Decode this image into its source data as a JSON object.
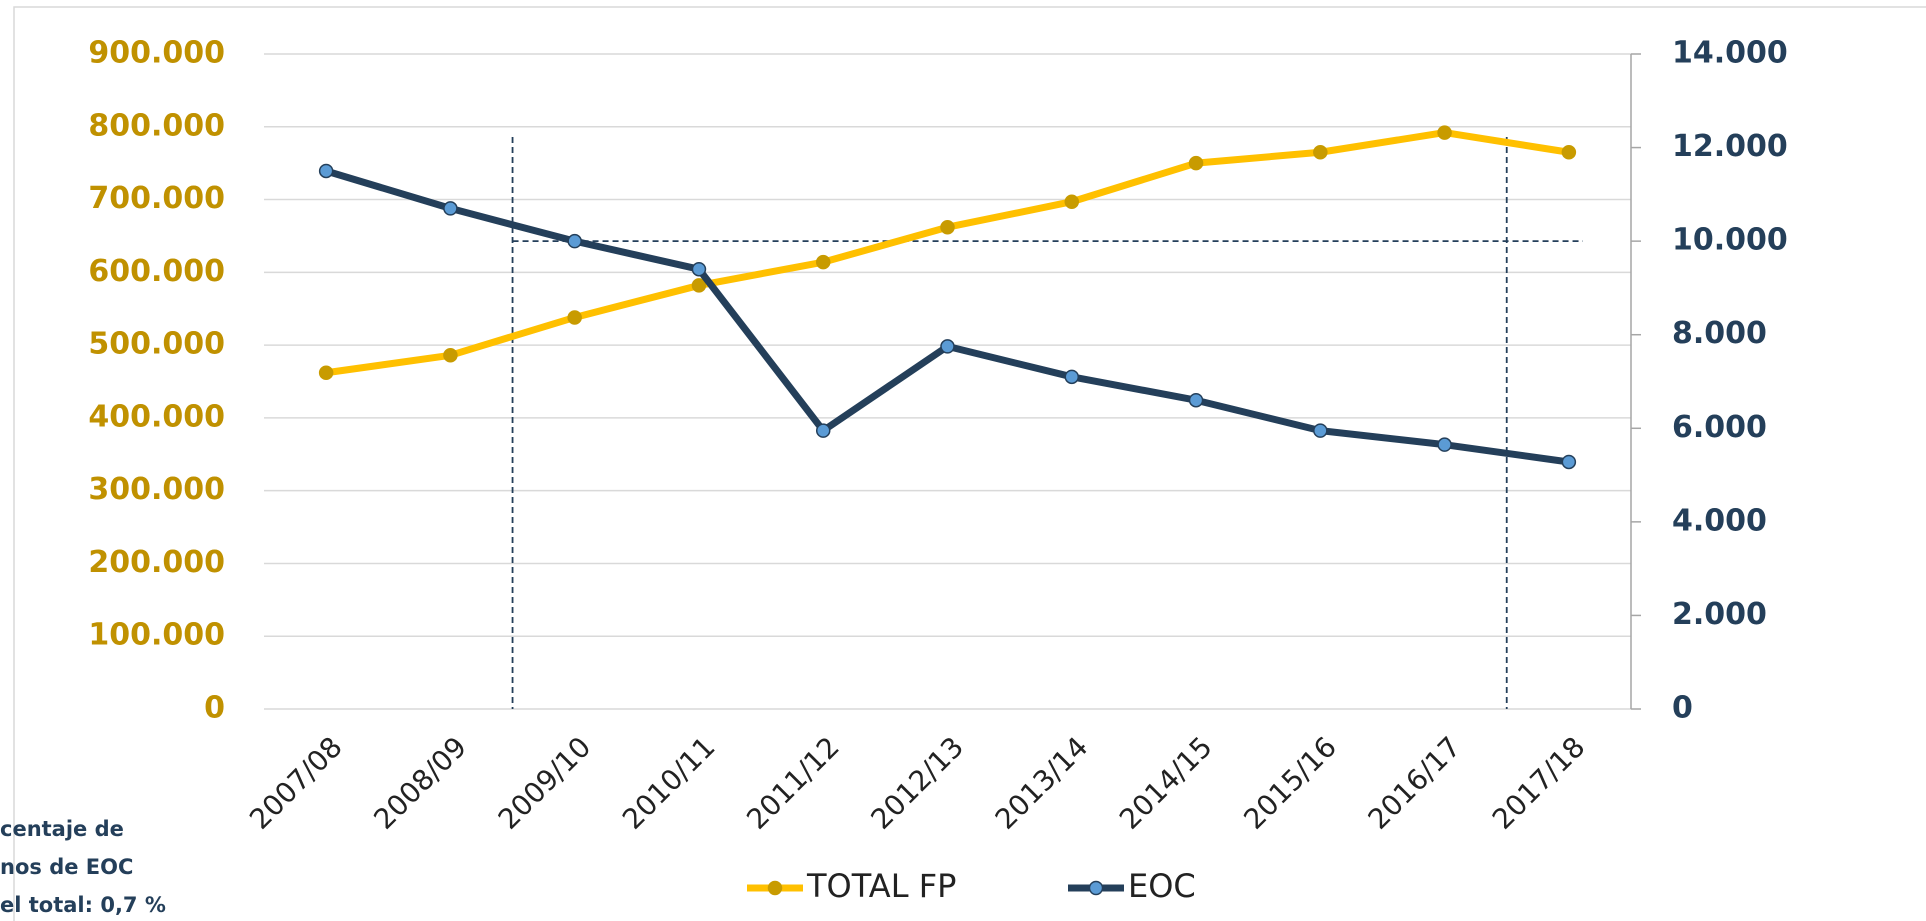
{
  "chart_data": {
    "type": "line",
    "categories": [
      "2007/08",
      "2008/09",
      "2009/10",
      "2010/11",
      "2011/12",
      "2012/13",
      "2013/14",
      "2014/15",
      "2015/16",
      "2016/17",
      "2017/18"
    ],
    "series": [
      {
        "name": "TOTAL FP",
        "color": "#FFC000",
        "marker_color": "#C89B00",
        "values": [
          462000,
          486000,
          538000,
          582000,
          614000,
          662000,
          697000,
          750000,
          765000,
          792000,
          765000
        ]
      },
      {
        "name": "EOC",
        "color": "#243F5A",
        "marker_color": "#5B9BD5",
        "axis": "y2",
        "values": [
          11500,
          10700,
          10000,
          9400,
          5950,
          7750,
          7100,
          6600,
          5950,
          5650,
          5280
        ]
      }
    ],
    "ylim": [
      0,
      900000
    ],
    "yticks": [
      0,
      {
        "value": 100000,
        "label": "100.000"
      },
      {
        "value": 200000,
        "label": "200.000"
      },
      {
        "value": 300000,
        "label": "300.000"
      },
      {
        "value": 400000,
        "label": "400.000"
      },
      {
        "value": 500000,
        "label": "500.000"
      },
      {
        "value": 600000,
        "label": "600.000"
      },
      {
        "value": 700000,
        "label": "700.000"
      },
      {
        "value": 800000,
        "label": "800.000"
      },
      {
        "value": 900000,
        "label": "900.000"
      }
    ],
    "y2lim": [
      0,
      14000
    ],
    "y2ticks": [
      0,
      {
        "value": 2000,
        "label": "2.000"
      },
      {
        "value": 4000,
        "label": "4.000"
      },
      {
        "value": 6000,
        "label": "6.000"
      },
      {
        "value": 8000,
        "label": "8.000"
      },
      {
        "value": 10000,
        "label": "10.000"
      },
      {
        "value": 12000,
        "label": "12.000"
      },
      {
        "value": 14000,
        "label": "14.000"
      }
    ],
    "y2_reference": 10000,
    "grid": true,
    "legend": "bottom",
    "annotation": [
      "centaje de",
      "nos de EOC",
      "el total: 0,7 %"
    ]
  }
}
